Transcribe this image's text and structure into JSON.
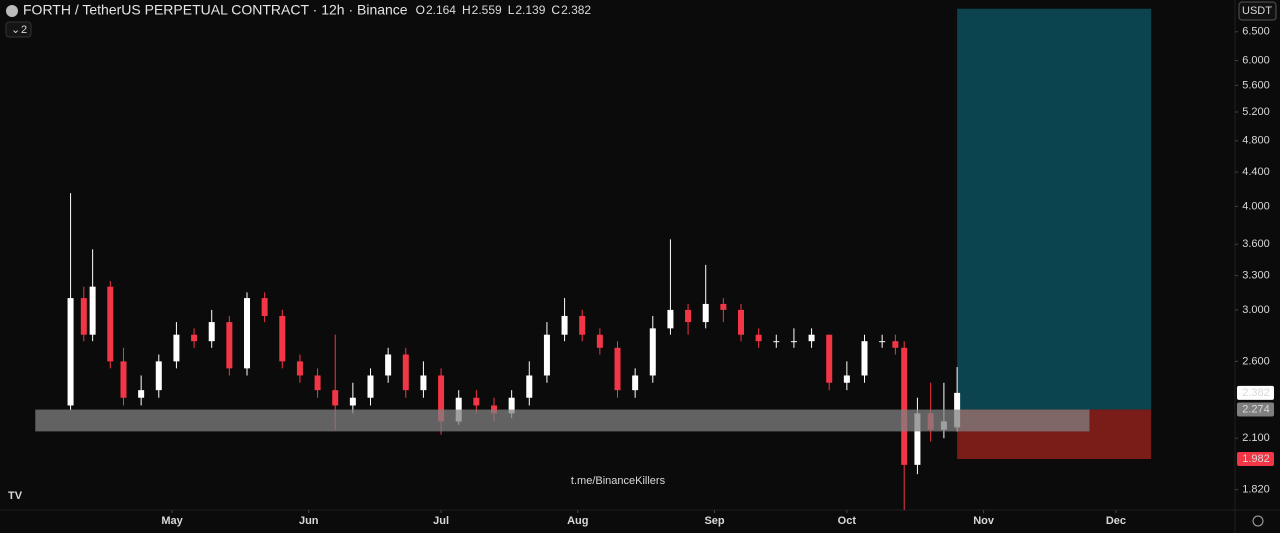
{
  "chart_data": {
    "type": "candlestick",
    "title": "FORTH / TetherUS PERPETUAL CONTRACT · 12h · Binance",
    "ohlc_legend": [
      {
        "label": "O",
        "value": 2.164
      },
      {
        "label": "H",
        "value": 2.559
      },
      {
        "label": "L",
        "value": 2.139
      },
      {
        "label": "C",
        "value": 2.382
      }
    ],
    "indicator_count": "2",
    "currency": "USDT",
    "watermark": "t.me/BinanceKillers",
    "log_scale": true,
    "up_color": "#ffffff",
    "down_color": "#f23645",
    "x": [
      98,
      101,
      103,
      107,
      110,
      114,
      118,
      122,
      126,
      130,
      134,
      138,
      142,
      146,
      150,
      154,
      158,
      162,
      166,
      170,
      174,
      178,
      182,
      186,
      190,
      194,
      198,
      202,
      206,
      210,
      214,
      218,
      222,
      226,
      230,
      234,
      238,
      242,
      246,
      250,
      254,
      258,
      262,
      266,
      270,
      274,
      278,
      282,
      285,
      287,
      290,
      293,
      296,
      299
    ],
    "open": [
      2.3,
      3.1,
      2.8,
      3.2,
      2.6,
      2.35,
      2.4,
      2.6,
      2.8,
      2.75,
      2.9,
      2.55,
      3.1,
      2.95,
      2.6,
      2.5,
      2.4,
      2.3,
      2.35,
      2.5,
      2.65,
      2.4,
      2.5,
      2.2,
      2.35,
      2.3,
      2.25,
      2.35,
      2.5,
      2.8,
      2.95,
      2.8,
      2.7,
      2.4,
      2.5,
      2.85,
      3.0,
      2.9,
      3.05,
      3.0,
      2.8,
      2.75,
      2.75,
      2.75,
      2.8,
      2.45,
      2.5,
      2.75,
      2.75,
      2.7,
      1.95,
      2.25,
      2.15,
      2.164
    ],
    "high": [
      4.15,
      3.2,
      3.55,
      3.25,
      2.7,
      2.5,
      2.65,
      2.9,
      2.85,
      3.0,
      2.95,
      3.15,
      3.15,
      3.0,
      2.65,
      2.55,
      2.8,
      2.45,
      2.55,
      2.7,
      2.7,
      2.6,
      2.55,
      2.4,
      2.4,
      2.35,
      2.4,
      2.6,
      2.9,
      3.1,
      3.0,
      2.85,
      2.75,
      2.55,
      2.95,
      3.65,
      3.05,
      3.4,
      3.1,
      3.05,
      2.85,
      2.8,
      2.85,
      2.85,
      2.8,
      2.6,
      2.8,
      2.8,
      2.8,
      2.75,
      2.35,
      2.45,
      2.45,
      2.559
    ],
    "low": [
      2.27,
      2.75,
      2.75,
      2.55,
      2.3,
      2.3,
      2.35,
      2.55,
      2.7,
      2.7,
      2.5,
      2.5,
      2.9,
      2.55,
      2.45,
      2.35,
      2.15,
      2.25,
      2.3,
      2.45,
      2.35,
      2.35,
      2.12,
      2.18,
      2.25,
      2.2,
      2.22,
      2.3,
      2.45,
      2.75,
      2.75,
      2.65,
      2.35,
      2.35,
      2.45,
      2.8,
      2.8,
      2.85,
      2.9,
      2.75,
      2.7,
      2.7,
      2.7,
      2.7,
      2.4,
      2.4,
      2.45,
      2.7,
      2.65,
      1.72,
      1.9,
      2.08,
      2.1,
      2.139
    ],
    "close": [
      3.1,
      2.8,
      3.2,
      2.6,
      2.35,
      2.4,
      2.6,
      2.8,
      2.75,
      2.9,
      2.55,
      3.1,
      2.95,
      2.6,
      2.5,
      2.4,
      2.3,
      2.35,
      2.5,
      2.65,
      2.4,
      2.5,
      2.2,
      2.35,
      2.3,
      2.25,
      2.35,
      2.5,
      2.8,
      2.95,
      2.8,
      2.7,
      2.4,
      2.5,
      2.85,
      3.0,
      2.9,
      3.05,
      3.0,
      2.8,
      2.75,
      2.75,
      2.75,
      2.8,
      2.45,
      2.5,
      2.75,
      2.75,
      2.7,
      1.95,
      2.25,
      2.15,
      2.2,
      2.382
    ],
    "xlim": [
      82,
      362
    ],
    "xticks": [
      {
        "value": 121,
        "label": "May"
      },
      {
        "value": 152,
        "label": "Jun"
      },
      {
        "value": 182,
        "label": "Jul"
      },
      {
        "value": 213,
        "label": "Aug"
      },
      {
        "value": 244,
        "label": "Sep"
      },
      {
        "value": 274,
        "label": "Oct"
      },
      {
        "value": 305,
        "label": "Nov"
      },
      {
        "value": 335,
        "label": "Dec"
      }
    ],
    "ylim": [
      1.72,
      7.1
    ],
    "yticks": [
      {
        "value": 1.82,
        "label": "1.820"
      },
      {
        "value": 2.1,
        "label": "2.100"
      },
      {
        "value": 2.6,
        "label": "2.600"
      },
      {
        "value": 3.0,
        "label": "3.000"
      },
      {
        "value": 3.3,
        "label": "3.300"
      },
      {
        "value": 3.6,
        "label": "3.600"
      },
      {
        "value": 4.0,
        "label": "4.000"
      },
      {
        "value": 4.4,
        "label": "4.400"
      },
      {
        "value": 4.8,
        "label": "4.800"
      },
      {
        "value": 5.2,
        "label": "5.200"
      },
      {
        "value": 5.6,
        "label": "5.600"
      },
      {
        "value": 6.0,
        "label": "6.000"
      },
      {
        "value": 6.5,
        "label": "6.500"
      }
    ],
    "zone": {
      "x": [
        90,
        329
      ],
      "y": [
        2.14,
        2.274
      ],
      "color": "#808080"
    },
    "position": {
      "x": [
        299,
        343
      ],
      "target": 6.93,
      "entry": 2.274,
      "stop": 1.982,
      "profit_color": "#0b4a55",
      "loss_color": "#7a1c18"
    }
  }
}
